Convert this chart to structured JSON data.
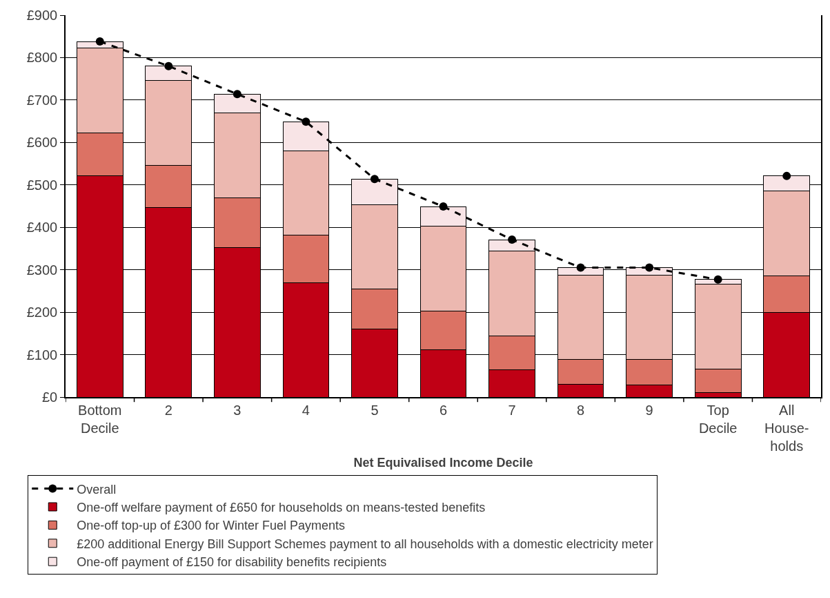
{
  "chart_data": {
    "type": "bar",
    "stacked": true,
    "xlabel": "Net Equivalised Income Decile",
    "categories": [
      "Bottom\nDecile",
      "2",
      "3",
      "4",
      "5",
      "6",
      "7",
      "8",
      "9",
      "Top\nDecile",
      "All\nHouse-\nholds"
    ],
    "series": [
      {
        "name": "One-off welfare payment of £650 for households on means-tested benefits",
        "color": "#c00015",
        "values": [
          522,
          446,
          352,
          270,
          160,
          111,
          64,
          30,
          28,
          10,
          200
        ]
      },
      {
        "name": "One-off top-up of £300 for Winter Fuel Payments",
        "color": "#dc7264",
        "values": [
          100,
          100,
          118,
          111,
          94,
          92,
          80,
          58,
          60,
          56,
          86
        ]
      },
      {
        "name": "£200 additional Energy Bill Support Schemes payment to all households with a domestic electricity meter",
        "color": "#ecb8b0",
        "values": [
          200,
          200,
          200,
          200,
          200,
          200,
          200,
          200,
          200,
          200,
          200
        ]
      },
      {
        "name": "One-off payment of £150 for disability benefits recipients",
        "color": "#f8e4e6",
        "values": [
          16,
          34,
          44,
          68,
          60,
          46,
          27,
          17,
          17,
          12,
          35
        ]
      },
      {
        "name": "Overall",
        "type": "line",
        "color": "#000000",
        "marker": "circle",
        "line_style": "dashed",
        "values": [
          838,
          780,
          714,
          649,
          514,
          449,
          371,
          305,
          305,
          277,
          null
        ]
      },
      {
        "type": "scatter",
        "color": "#000000",
        "marker": "circle",
        "values": [
          null,
          null,
          null,
          null,
          null,
          null,
          null,
          null,
          null,
          null,
          521
        ]
      }
    ],
    "ylim": [
      0,
      900
    ],
    "yticks": [
      {
        "value": 0,
        "label": "£0"
      },
      {
        "value": 100,
        "label": "£100"
      },
      {
        "value": 200,
        "label": "£200"
      },
      {
        "value": 300,
        "label": "£300"
      },
      {
        "value": 400,
        "label": "£400"
      },
      {
        "value": 500,
        "label": "£500"
      },
      {
        "value": 600,
        "label": "£600"
      },
      {
        "value": 700,
        "label": "£700"
      },
      {
        "value": 800,
        "label": "£800"
      },
      {
        "value": 900,
        "label": "£900"
      }
    ],
    "grid": "y",
    "legend": "bottom"
  }
}
